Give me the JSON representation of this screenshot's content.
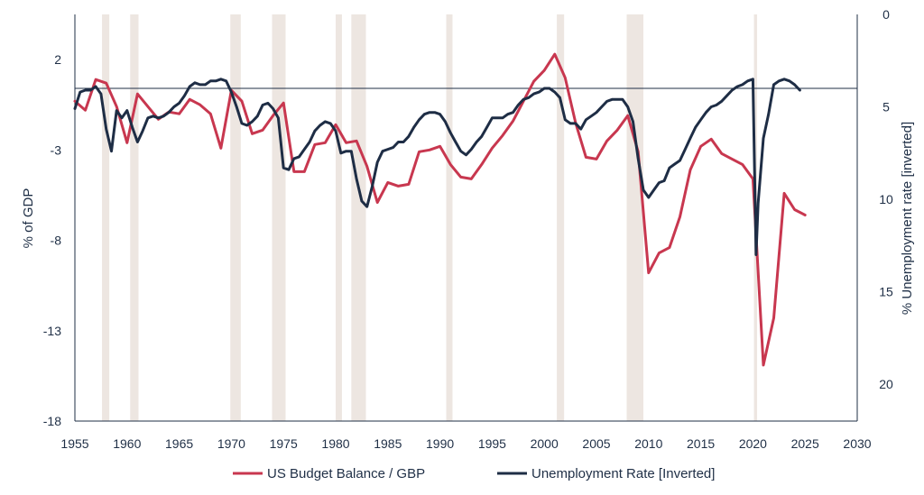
{
  "chart_data": {
    "type": "line",
    "title": "",
    "xlabel": "",
    "ylabel_left": "% of GDP",
    "ylabel_right": "% Unemployment rate [inverted]",
    "x_ticks": [
      1955,
      1960,
      1965,
      1970,
      1975,
      1980,
      1985,
      1990,
      1995,
      2000,
      2005,
      2010,
      2015,
      2020,
      2025,
      2030
    ],
    "xlim": [
      1955,
      2030
    ],
    "y_left_ticks": [
      2,
      -3,
      -8,
      -13,
      -18
    ],
    "ylim_left": [
      -18,
      4.5
    ],
    "y_right_ticks": [
      0,
      5,
      10,
      15,
      20
    ],
    "ylim_right_inverted": [
      0,
      22
    ],
    "reference_line": {
      "axis": "right",
      "value": 4
    },
    "grid": false,
    "legend_position": "bottom",
    "colors": {
      "budget": "#c8374f",
      "unemployment": "#1e2d45",
      "recession": "#ede6e1",
      "text": "#1f2f46",
      "axis": "#1f2f46"
    },
    "recessions": [
      [
        1957.6,
        1958.3
      ],
      [
        1960.3,
        1961.1
      ],
      [
        1969.9,
        1970.9
      ],
      [
        1973.9,
        1975.2
      ],
      [
        1980.0,
        1980.6
      ],
      [
        1981.5,
        1982.9
      ],
      [
        1990.6,
        1991.2
      ],
      [
        2001.2,
        2001.9
      ],
      [
        2007.9,
        2009.5
      ],
      [
        2020.1,
        2020.4
      ]
    ],
    "series": [
      {
        "name": "US Budget Balance / GBP",
        "axis": "left",
        "x": [
          1955,
          1956,
          1957,
          1958,
          1959,
          1960,
          1961,
          1962,
          1963,
          1964,
          1965,
          1966,
          1967,
          1968,
          1969,
          1970,
          1971,
          1972,
          1973,
          1974,
          1975,
          1976,
          1977,
          1978,
          1979,
          1980,
          1981,
          1982,
          1983,
          1984,
          1985,
          1986,
          1987,
          1988,
          1989,
          1990,
          1991,
          1992,
          1993,
          1994,
          1995,
          1996,
          1997,
          1998,
          1999,
          2000,
          2001,
          2002,
          2003,
          2004,
          2005,
          2006,
          2007,
          2008,
          2009,
          2010,
          2011,
          2012,
          2013,
          2014,
          2015,
          2016,
          2017,
          2018,
          2019,
          2020,
          2021,
          2022,
          2023,
          2024,
          2025
        ],
        "values": [
          -0.3,
          -0.8,
          0.9,
          0.7,
          -0.6,
          -2.6,
          0.1,
          -0.6,
          -1.3,
          -0.9,
          -1.0,
          -0.2,
          -0.5,
          -1.0,
          -2.9,
          0.3,
          -0.3,
          -2.1,
          -1.9,
          -1.1,
          -0.4,
          -4.2,
          -4.2,
          -2.7,
          -2.6,
          -1.6,
          -2.6,
          -2.5,
          -3.9,
          -5.9,
          -4.8,
          -5.0,
          -4.9,
          -3.1,
          -3.0,
          -2.8,
          -3.8,
          -4.5,
          -4.6,
          -3.8,
          -2.9,
          -2.2,
          -1.4,
          -0.3,
          0.8,
          1.4,
          2.3,
          1.0,
          -1.5,
          -3.4,
          -3.5,
          -2.5,
          -1.9,
          -1.1,
          -3.1,
          -9.8,
          -8.7,
          -8.4,
          -6.7,
          -4.1,
          -2.8,
          -2.4,
          -3.2,
          -3.5,
          -3.8,
          -4.6,
          -14.9,
          -12.3,
          -5.4,
          -6.3,
          -6.6
        ]
      },
      {
        "name": "Unemployment Rate [Inverted]",
        "axis": "right",
        "x": [
          1955.0,
          1955.5,
          1956.0,
          1956.5,
          1957.0,
          1957.5,
          1958.0,
          1958.5,
          1959.0,
          1959.5,
          1960.0,
          1960.5,
          1961.0,
          1961.5,
          1962.0,
          1962.5,
          1963.0,
          1963.5,
          1964.0,
          1964.5,
          1965.0,
          1965.5,
          1966.0,
          1966.5,
          1967.0,
          1967.5,
          1968.0,
          1968.5,
          1969.0,
          1969.5,
          1970.0,
          1970.5,
          1971.0,
          1971.5,
          1972.0,
          1972.5,
          1973.0,
          1973.5,
          1974.0,
          1974.5,
          1975.0,
          1975.5,
          1976.0,
          1976.5,
          1977.0,
          1977.5,
          1978.0,
          1978.5,
          1979.0,
          1979.5,
          1980.0,
          1980.5,
          1981.0,
          1981.5,
          1982.0,
          1982.5,
          1983.0,
          1983.5,
          1984.0,
          1984.5,
          1985.0,
          1985.5,
          1986.0,
          1986.5,
          1987.0,
          1987.5,
          1988.0,
          1988.5,
          1989.0,
          1989.5,
          1990.0,
          1990.5,
          1991.0,
          1991.5,
          1992.0,
          1992.5,
          1993.0,
          1993.5,
          1994.0,
          1994.5,
          1995.0,
          1995.5,
          1996.0,
          1996.5,
          1997.0,
          1997.5,
          1998.0,
          1998.5,
          1999.0,
          1999.5,
          2000.0,
          2000.5,
          2001.0,
          2001.5,
          2002.0,
          2002.5,
          2003.0,
          2003.5,
          2004.0,
          2004.5,
          2005.0,
          2005.5,
          2006.0,
          2006.5,
          2007.0,
          2007.5,
          2008.0,
          2008.5,
          2009.0,
          2009.5,
          2010.0,
          2010.5,
          2011.0,
          2011.5,
          2012.0,
          2012.5,
          2013.0,
          2013.5,
          2014.0,
          2014.5,
          2015.0,
          2015.5,
          2016.0,
          2016.5,
          2017.0,
          2017.5,
          2018.0,
          2018.5,
          2019.0,
          2019.5,
          2020.0,
          2020.3,
          2020.5,
          2021.0,
          2021.5,
          2022.0,
          2022.5,
          2023.0,
          2023.5,
          2024.0,
          2024.5
        ],
        "values": [
          5.1,
          4.2,
          4.1,
          4.1,
          3.9,
          4.3,
          6.2,
          7.4,
          5.2,
          5.6,
          5.2,
          6.1,
          6.9,
          6.3,
          5.6,
          5.5,
          5.6,
          5.5,
          5.3,
          5.0,
          4.8,
          4.4,
          3.9,
          3.7,
          3.8,
          3.8,
          3.6,
          3.6,
          3.5,
          3.6,
          4.2,
          5.0,
          5.9,
          6.0,
          5.8,
          5.5,
          4.9,
          4.8,
          5.1,
          5.6,
          8.3,
          8.4,
          7.8,
          7.7,
          7.3,
          6.9,
          6.3,
          6.0,
          5.8,
          5.9,
          6.3,
          7.5,
          7.4,
          7.4,
          8.9,
          10.1,
          10.4,
          9.3,
          8.0,
          7.4,
          7.3,
          7.2,
          6.9,
          6.9,
          6.6,
          6.1,
          5.7,
          5.4,
          5.3,
          5.3,
          5.4,
          5.8,
          6.4,
          6.9,
          7.4,
          7.6,
          7.3,
          6.9,
          6.6,
          6.1,
          5.6,
          5.6,
          5.6,
          5.4,
          5.3,
          4.9,
          4.6,
          4.5,
          4.3,
          4.2,
          4.0,
          4.0,
          4.2,
          4.5,
          5.7,
          5.9,
          5.9,
          6.2,
          5.7,
          5.5,
          5.3,
          5.0,
          4.7,
          4.6,
          4.6,
          4.6,
          5.0,
          5.8,
          7.8,
          9.5,
          9.9,
          9.5,
          9.1,
          9.0,
          8.3,
          8.1,
          7.9,
          7.3,
          6.7,
          6.1,
          5.7,
          5.3,
          5.0,
          4.9,
          4.7,
          4.4,
          4.1,
          3.9,
          3.8,
          3.6,
          3.5,
          13.0,
          10.2,
          6.7,
          5.4,
          3.8,
          3.6,
          3.5,
          3.6,
          3.8,
          4.1
        ]
      }
    ]
  }
}
